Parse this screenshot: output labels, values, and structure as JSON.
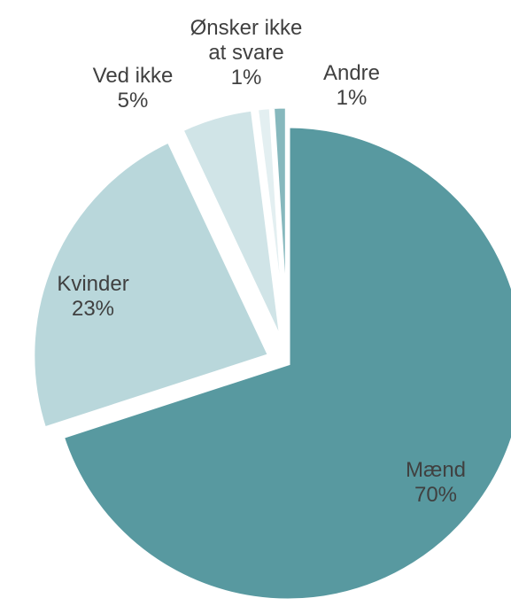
{
  "chart_data": {
    "type": "pie",
    "categories": [
      "Mænd",
      "Kvinder",
      "Ved ikke",
      "Ønsker ikke at svare",
      "Andre"
    ],
    "values": [
      70,
      23,
      5,
      1,
      1
    ],
    "value_labels": [
      "70%",
      "23%",
      "5%",
      "1%",
      "1%"
    ],
    "colors": [
      "#5899a0",
      "#b9d7db",
      "#d0e4e7",
      "#e3eff1",
      "#86b8bd"
    ]
  }
}
